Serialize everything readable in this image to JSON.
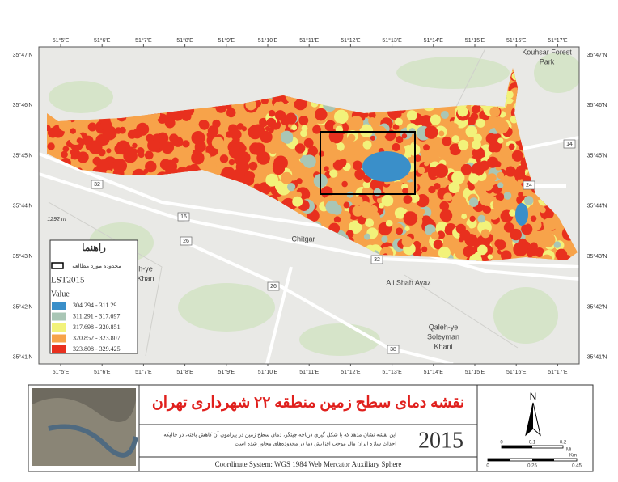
{
  "map": {
    "lon_labels": [
      "51°5'E",
      "51°6'E",
      "51°7'E",
      "51°8'E",
      "51°9'E",
      "51°10'E",
      "51°11'E",
      "51°12'E",
      "51°13'E",
      "51°14'E",
      "51°15'E",
      "51°16'E",
      "51°17'E"
    ],
    "lat_labels": [
      "35°47'N",
      "35°46'N",
      "35°45'N",
      "35°44'N",
      "35°43'N",
      "35°42'N",
      "35°41'N"
    ],
    "places": [
      [
        "Kouhsar Forest",
        "Park"
      ],
      [
        "Chitgar"
      ],
      [
        "Ali Shah Avaz"
      ],
      [
        "Qaleh-ye",
        "Soleyman",
        "Khani"
      ],
      [
        "h-ye",
        "Khan"
      ]
    ],
    "roads": [
      "32",
      "16",
      "26",
      "32",
      "26",
      "14",
      "24",
      "38"
    ],
    "elevation": "1292 m"
  },
  "legend": {
    "title": "راهنما",
    "study_area": "محدوده مورد مطالعه",
    "layer": "LST2015",
    "field": "Value",
    "classes": [
      "304.294 - 311.29",
      "311.291 - 317.697",
      "317.698 - 320.851",
      "320.852 - 323.807",
      "323.808 - 329.425"
    ]
  },
  "panel": {
    "title": "نقشه دمای سطح زمین منطقه ۲۲ شهرداری تهران",
    "description": [
      "این نقشه نشان مدهد که با شکل گیری دریاچه چیتگر، دمای سطح زمین در پیرامون آن کاهش یافته، در حالیکه",
      "احداث سازه ایران مال موجب افزایش دما در محدوده‌های مجاور شده است"
    ],
    "year": "2015",
    "coordinate_system": "Coordinate System: WGS 1984 Web Mercator Auxiliary Sphere",
    "north": "N",
    "scale_mi": [
      "0",
      "0.1",
      "0.2"
    ],
    "unit_mi": "Mi",
    "scale_km": [
      "0",
      "0.25",
      "0.45"
    ],
    "unit_km": "Km"
  }
}
